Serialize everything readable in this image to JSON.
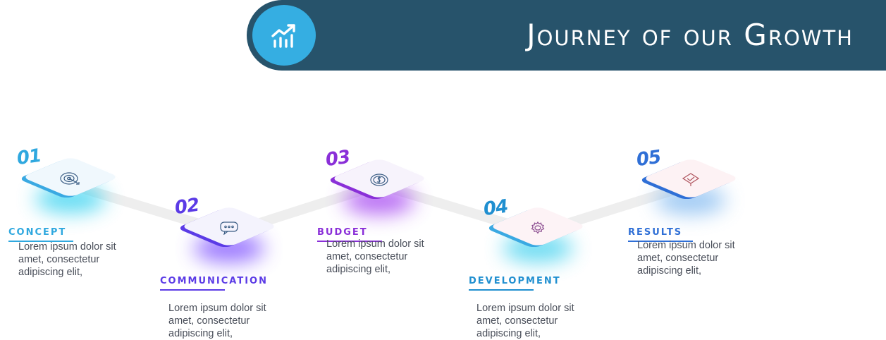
{
  "header": {
    "title": "Journey of our Growth",
    "icon": "growth-chart-icon",
    "bar_color": "#27536b",
    "circle_color": "#35aee2"
  },
  "steps": [
    {
      "number": "01",
      "label": "CONCEPT",
      "text": "Lorem ipsum dolor sit amet, consectetur adipiscing elit,",
      "icon": "target-icon",
      "color": "#2fa8df",
      "tile_color": "#f0f8fd"
    },
    {
      "number": "02",
      "label": "COMMUNICATION",
      "text": "Lorem ipsum dolor sit amet, consectetur adipiscing elit,",
      "icon": "chat-bubble-icon",
      "color": "#5b3be6",
      "tile_color": "#f4f3fd"
    },
    {
      "number": "03",
      "label": "BUDGET",
      "text": "Lorem ipsum dolor sit amet, consectetur adipiscing elit,",
      "icon": "coin-icon",
      "color": "#8a2fd8",
      "tile_color": "#f7f3fc"
    },
    {
      "number": "04",
      "label": "DEVELOPMENT",
      "text": "Lorem ipsum dolor sit amet, consectetur adipiscing elit,",
      "icon": "gear-icon",
      "color": "#1f8fd0",
      "tile_color": "#fdf3f6"
    },
    {
      "number": "05",
      "label": "RESULTS",
      "text": "Lorem ipsum dolor sit amet, consectetur adipiscing elit,",
      "icon": "presentation-icon",
      "color": "#2f6fd6",
      "tile_color": "#fdf2f4"
    }
  ]
}
